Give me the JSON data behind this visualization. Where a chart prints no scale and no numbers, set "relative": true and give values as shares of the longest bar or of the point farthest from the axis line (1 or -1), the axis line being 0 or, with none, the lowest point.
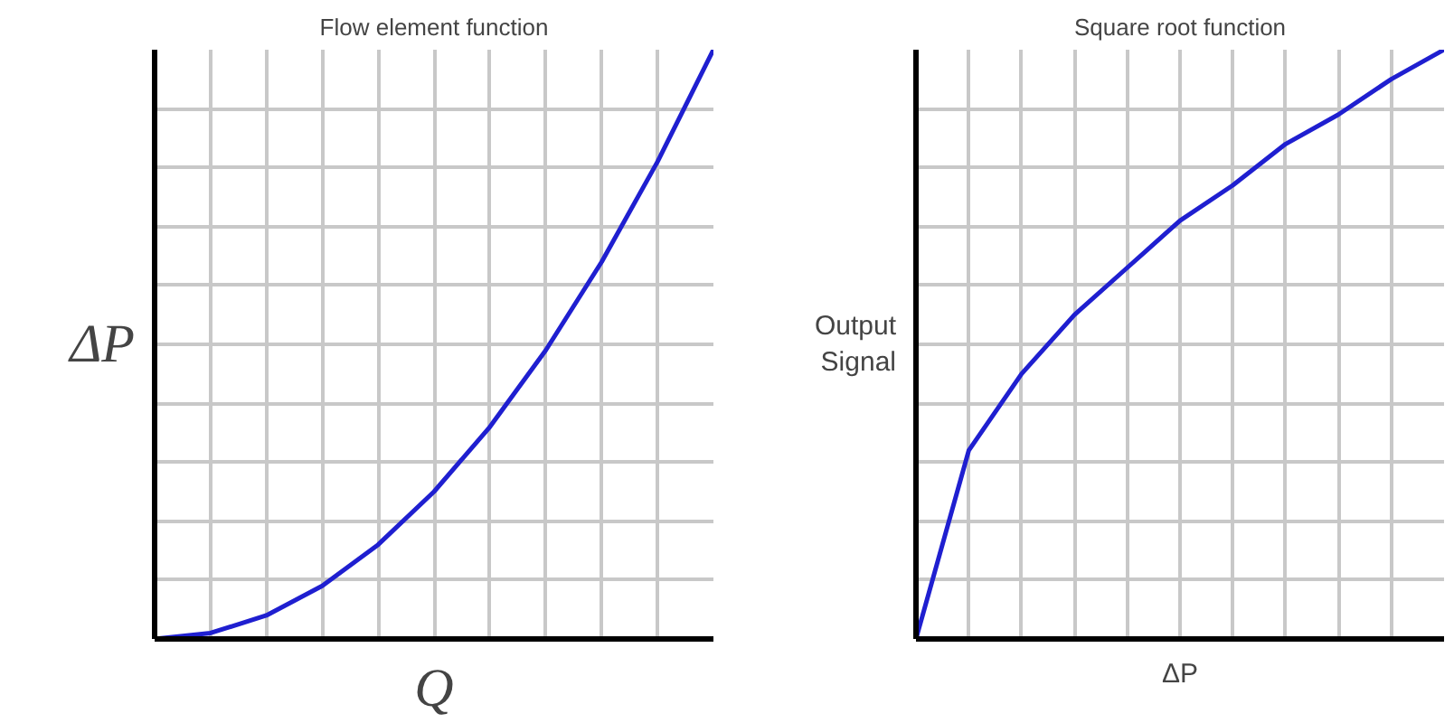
{
  "chart_data": [
    {
      "type": "line",
      "title": "Flow element function",
      "xlabel": "Q",
      "ylabel": "ΔP",
      "relative": true,
      "grid": true,
      "tick_labels": false,
      "categories": [
        null,
        null,
        null,
        null,
        null,
        null,
        null,
        null,
        null,
        null,
        null
      ],
      "series": [
        {
          "color": "#1f1fd0",
          "values": [
            0,
            0.01,
            0.04,
            0.09,
            0.16,
            0.25,
            0.36,
            0.49,
            0.64,
            0.81,
            1.0
          ]
        }
      ]
    },
    {
      "type": "line",
      "title": "Square root function",
      "xlabel": "ΔP",
      "ylabel": "Output Signal",
      "relative": true,
      "grid": true,
      "tick_labels": false,
      "categories": [
        null,
        null,
        null,
        null,
        null,
        null,
        null,
        null,
        null,
        null,
        null
      ],
      "series": [
        {
          "color": "#1f1fd0",
          "values": [
            0,
            0.32,
            0.45,
            0.55,
            0.63,
            0.71,
            0.77,
            0.84,
            0.89,
            0.95,
            1.0
          ]
        }
      ]
    }
  ]
}
